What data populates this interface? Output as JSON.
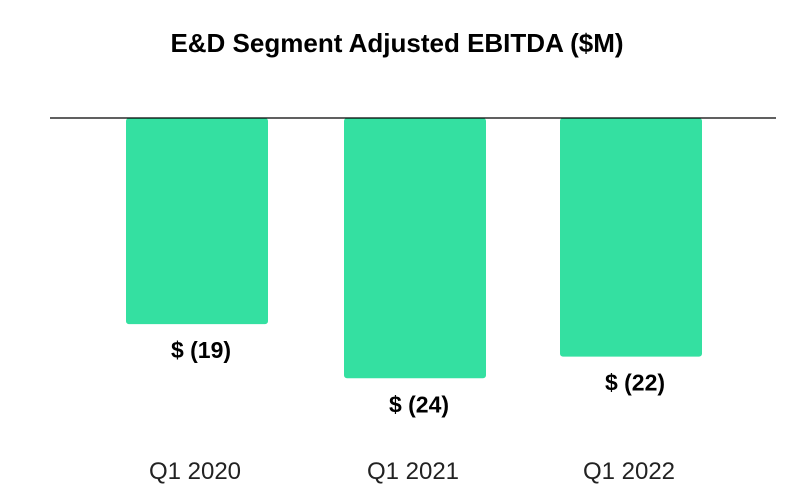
{
  "chart_data": {
    "type": "bar",
    "title": "E&D Segment Adjusted EBITDA ($M)",
    "categories": [
      "Q1 2020",
      "Q1 2021",
      "Q1 2022"
    ],
    "values": [
      -19,
      -24,
      -22
    ],
    "data_labels": [
      "$ (19)",
      "$ (24)",
      "$ (22)"
    ],
    "ylim": [
      -26,
      0
    ],
    "grid": false,
    "legend": "none",
    "colors": {
      "bar": "#34E0A1",
      "axis": "#000000",
      "label": "#000000",
      "category": "#222222"
    }
  }
}
